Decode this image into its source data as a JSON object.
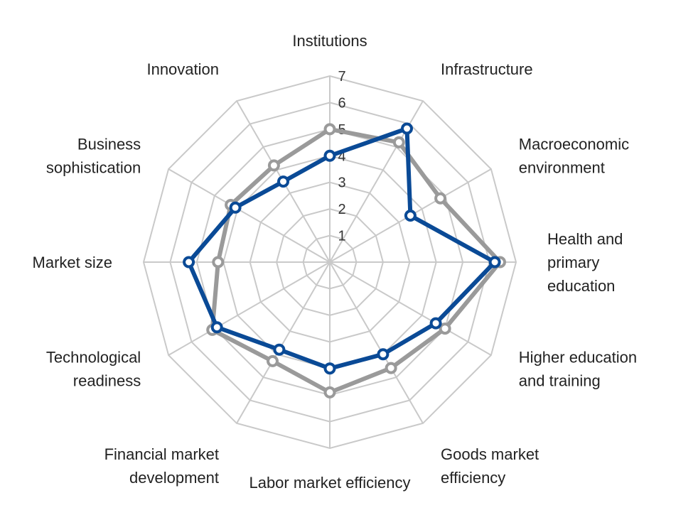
{
  "chart_data": {
    "type": "radar",
    "categories": [
      [
        "Institutions"
      ],
      [
        "Infrastructure"
      ],
      [
        "Macroeconomic",
        "environment"
      ],
      [
        "Health and",
        "primary",
        "education"
      ],
      [
        "Higher education",
        "and training"
      ],
      [
        "Goods market",
        "efficiency"
      ],
      [
        "Labor market efficiency"
      ],
      [
        "Financial market",
        "development"
      ],
      [
        "Technological",
        "readiness"
      ],
      [
        "Market size"
      ],
      [
        "Business",
        "sophistication"
      ],
      [
        "Innovation"
      ]
    ],
    "rlim": [
      0,
      7
    ],
    "ticks": [
      "1",
      "2",
      "3",
      "4",
      "5",
      "6",
      "7"
    ],
    "grid": true,
    "series": [
      {
        "color": "#9a9a9a",
        "values": [
          5.0,
          5.2,
          4.8,
          6.4,
          5.0,
          4.6,
          4.9,
          4.3,
          5.1,
          4.2,
          4.3,
          4.2
        ]
      },
      {
        "color": "#0a4a96",
        "values": [
          4.0,
          5.8,
          3.5,
          6.2,
          4.6,
          4.0,
          4.0,
          3.8,
          4.9,
          5.3,
          4.1,
          3.5
        ]
      }
    ]
  }
}
